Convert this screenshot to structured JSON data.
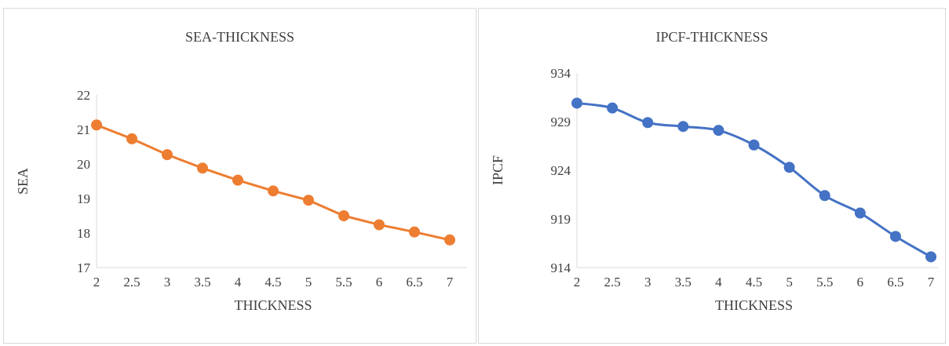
{
  "chart_data": [
    {
      "type": "line",
      "title": "SEA-THICKNESS",
      "xlabel": "THICKNESS",
      "ylabel": "SEA",
      "categories": [
        "2",
        "2.5",
        "3",
        "3.5",
        "4",
        "4.5",
        "5",
        "5.5",
        "6",
        "6.5",
        "7"
      ],
      "yticks": [
        "17",
        "18",
        "19",
        "20",
        "21",
        "22"
      ],
      "ylim": [
        17,
        22
      ],
      "series": [
        {
          "color": "#ed7d31",
          "values": [
            21.13,
            20.73,
            20.27,
            19.88,
            19.53,
            19.22,
            18.95,
            18.5,
            18.24,
            18.03,
            17.8
          ]
        }
      ],
      "grid": false,
      "markers": true
    },
    {
      "type": "line",
      "title": "IPCF-THICKNESS",
      "xlabel": "THICKNESS",
      "ylabel": "IPCF",
      "categories": [
        "2",
        "2.5",
        "3",
        "3.5",
        "4",
        "4.5",
        "5",
        "5.5",
        "6",
        "6.5",
        "7"
      ],
      "yticks": [
        "914",
        "919",
        "924",
        "929",
        "934"
      ],
      "ylim": [
        914,
        934
      ],
      "series": [
        {
          "color": "#4472c4",
          "values": [
            930.9,
            930.4,
            928.9,
            928.5,
            928.1,
            926.6,
            924.3,
            921.4,
            919.6,
            917.2,
            915.1
          ]
        }
      ],
      "grid": false,
      "markers": true,
      "smooth": true
    }
  ]
}
